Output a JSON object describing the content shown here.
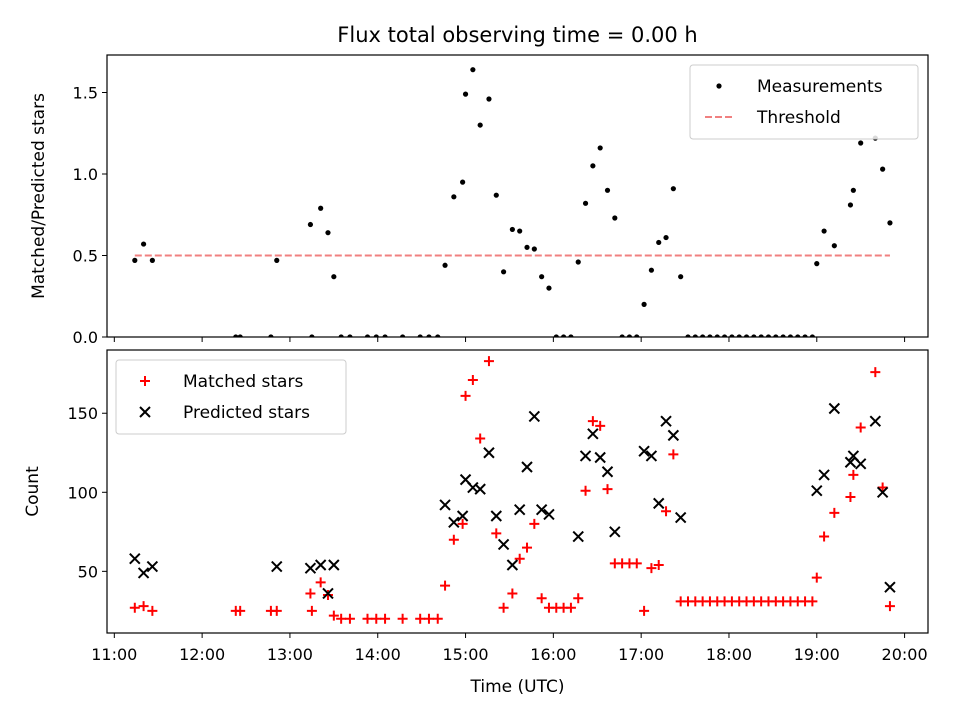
{
  "chart_data": {
    "title": "Flux total observing time = 0.00 h",
    "xlabel": "Time (UTC)",
    "x_ticks": [
      "11:00",
      "12:00",
      "13:00",
      "14:00",
      "15:00",
      "16:00",
      "17:00",
      "18:00",
      "19:00",
      "20:00"
    ],
    "xlim": [
      "10:55",
      "20:16"
    ],
    "panels": [
      {
        "type": "scatter",
        "ylabel": "Matched/Predicted stars",
        "ylim": [
          0,
          1.73
        ],
        "y_ticks": [
          "0.0",
          "0.5",
          "1.0",
          "1.5"
        ],
        "legend": "top-right",
        "series": [
          {
            "name": "Measurements",
            "marker": "dot",
            "color": "#000000",
            "points": [
              [
                "11:14",
                0.47
              ],
              [
                "11:20",
                0.57
              ],
              [
                "11:26",
                0.47
              ],
              [
                "12:23",
                0.0
              ],
              [
                "12:26",
                0.0
              ],
              [
                "12:47",
                0.0
              ],
              [
                "12:51",
                0.47
              ],
              [
                "13:14",
                0.69
              ],
              [
                "13:15",
                0.0
              ],
              [
                "13:21",
                0.79
              ],
              [
                "13:26",
                0.64
              ],
              [
                "13:30",
                0.37
              ],
              [
                "13:35",
                0.0
              ],
              [
                "13:41",
                0.0
              ],
              [
                "13:53",
                0.0
              ],
              [
                "13:59",
                0.0
              ],
              [
                "14:05",
                0.0
              ],
              [
                "14:17",
                0.0
              ],
              [
                "14:29",
                0.0
              ],
              [
                "14:35",
                0.0
              ],
              [
                "14:41",
                0.0
              ],
              [
                "14:46",
                0.44
              ],
              [
                "14:52",
                0.86
              ],
              [
                "14:58",
                0.95
              ],
              [
                "15:00",
                1.49
              ],
              [
                "15:05",
                1.64
              ],
              [
                "15:10",
                1.3
              ],
              [
                "15:16",
                1.46
              ],
              [
                "15:21",
                0.87
              ],
              [
                "15:26",
                0.4
              ],
              [
                "15:32",
                0.66
              ],
              [
                "15:37",
                0.65
              ],
              [
                "15:42",
                0.55
              ],
              [
                "15:47",
                0.54
              ],
              [
                "15:52",
                0.37
              ],
              [
                "15:57",
                0.3
              ],
              [
                "16:02",
                0.0
              ],
              [
                "16:07",
                0.0
              ],
              [
                "16:12",
                0.0
              ],
              [
                "16:17",
                0.46
              ],
              [
                "16:22",
                0.82
              ],
              [
                "16:27",
                1.05
              ],
              [
                "16:32",
                1.16
              ],
              [
                "16:37",
                0.9
              ],
              [
                "16:42",
                0.73
              ],
              [
                "16:47",
                0.0
              ],
              [
                "16:52",
                0.0
              ],
              [
                "16:57",
                0.0
              ],
              [
                "17:02",
                0.2
              ],
              [
                "17:07",
                0.41
              ],
              [
                "17:12",
                0.58
              ],
              [
                "17:17",
                0.61
              ],
              [
                "17:22",
                0.91
              ],
              [
                "17:27",
                0.37
              ],
              [
                "17:32",
                0.0
              ],
              [
                "17:37",
                0.0
              ],
              [
                "17:42",
                0.0
              ],
              [
                "17:47",
                0.0
              ],
              [
                "17:52",
                0.0
              ],
              [
                "17:57",
                0.0
              ],
              [
                "18:02",
                0.0
              ],
              [
                "18:07",
                0.0
              ],
              [
                "18:12",
                0.0
              ],
              [
                "18:17",
                0.0
              ],
              [
                "18:22",
                0.0
              ],
              [
                "18:27",
                0.0
              ],
              [
                "18:32",
                0.0
              ],
              [
                "18:37",
                0.0
              ],
              [
                "18:42",
                0.0
              ],
              [
                "18:47",
                0.0
              ],
              [
                "18:52",
                0.0
              ],
              [
                "18:57",
                0.0
              ],
              [
                "19:00",
                0.45
              ],
              [
                "19:05",
                0.65
              ],
              [
                "19:12",
                0.56
              ],
              [
                "19:23",
                0.81
              ],
              [
                "19:25",
                0.9
              ],
              [
                "19:30",
                1.19
              ],
              [
                "19:40",
                1.22
              ],
              [
                "19:45",
                1.03
              ],
              [
                "19:50",
                0.7
              ]
            ]
          },
          {
            "name": "Threshold",
            "marker": "dashed-line",
            "color": "#f08080",
            "points": [
              [
                "11:14",
                0.5
              ],
              [
                "19:50",
                0.5
              ]
            ]
          }
        ]
      },
      {
        "type": "scatter",
        "ylabel": "Count",
        "ylim": [
          11,
          190
        ],
        "y_ticks": [
          "50",
          "100",
          "150"
        ],
        "legend": "top-left",
        "series": [
          {
            "name": "Matched stars",
            "marker": "plus",
            "color": "#ff0000",
            "points": [
              [
                "11:14",
                27
              ],
              [
                "11:20",
                28
              ],
              [
                "11:26",
                25
              ],
              [
                "12:23",
                25
              ],
              [
                "12:26",
                25
              ],
              [
                "12:47",
                25
              ],
              [
                "12:51",
                25
              ],
              [
                "13:14",
                36
              ],
              [
                "13:15",
                25
              ],
              [
                "13:21",
                43
              ],
              [
                "13:26",
                35
              ],
              [
                "13:30",
                22
              ],
              [
                "13:35",
                20
              ],
              [
                "13:41",
                20
              ],
              [
                "13:53",
                20
              ],
              [
                "13:59",
                20
              ],
              [
                "14:05",
                20
              ],
              [
                "14:17",
                20
              ],
              [
                "14:29",
                20
              ],
              [
                "14:35",
                20
              ],
              [
                "14:41",
                20
              ],
              [
                "14:46",
                41
              ],
              [
                "14:52",
                70
              ],
              [
                "14:58",
                80
              ],
              [
                "15:00",
                161
              ],
              [
                "15:05",
                171
              ],
              [
                "15:10",
                134
              ],
              [
                "15:16",
                183
              ],
              [
                "15:21",
                74
              ],
              [
                "15:26",
                27
              ],
              [
                "15:32",
                36
              ],
              [
                "15:37",
                58
              ],
              [
                "15:42",
                65
              ],
              [
                "15:47",
                80
              ],
              [
                "15:52",
                33
              ],
              [
                "15:57",
                27
              ],
              [
                "16:02",
                27
              ],
              [
                "16:07",
                27
              ],
              [
                "16:12",
                27
              ],
              [
                "16:17",
                33
              ],
              [
                "16:22",
                101
              ],
              [
                "16:27",
                145
              ],
              [
                "16:32",
                142
              ],
              [
                "16:37",
                102
              ],
              [
                "16:42",
                55
              ],
              [
                "16:47",
                55
              ],
              [
                "16:52",
                55
              ],
              [
                "16:57",
                55
              ],
              [
                "17:02",
                25
              ],
              [
                "17:07",
                52
              ],
              [
                "17:12",
                54
              ],
              [
                "17:17",
                88
              ],
              [
                "17:22",
                124
              ],
              [
                "17:27",
                31
              ],
              [
                "17:32",
                31
              ],
              [
                "17:37",
                31
              ],
              [
                "17:42",
                31
              ],
              [
                "17:47",
                31
              ],
              [
                "17:52",
                31
              ],
              [
                "17:57",
                31
              ],
              [
                "18:02",
                31
              ],
              [
                "18:07",
                31
              ],
              [
                "18:12",
                31
              ],
              [
                "18:17",
                31
              ],
              [
                "18:22",
                31
              ],
              [
                "18:27",
                31
              ],
              [
                "18:32",
                31
              ],
              [
                "18:37",
                31
              ],
              [
                "18:42",
                31
              ],
              [
                "18:47",
                31
              ],
              [
                "18:52",
                31
              ],
              [
                "18:57",
                31
              ],
              [
                "19:00",
                46
              ],
              [
                "19:05",
                72
              ],
              [
                "19:12",
                87
              ],
              [
                "19:23",
                97
              ],
              [
                "19:25",
                111
              ],
              [
                "19:30",
                141
              ],
              [
                "19:40",
                176
              ],
              [
                "19:45",
                103
              ],
              [
                "19:50",
                28
              ]
            ]
          },
          {
            "name": "Predicted stars",
            "marker": "x",
            "color": "#000000",
            "points": [
              [
                "11:14",
                58
              ],
              [
                "11:20",
                49
              ],
              [
                "11:26",
                53
              ],
              [
                "12:51",
                53
              ],
              [
                "13:14",
                52
              ],
              [
                "13:21",
                54
              ],
              [
                "13:26",
                36
              ],
              [
                "13:30",
                54
              ],
              [
                "14:46",
                92
              ],
              [
                "14:52",
                81
              ],
              [
                "14:58",
                85
              ],
              [
                "15:00",
                108
              ],
              [
                "15:05",
                103
              ],
              [
                "15:10",
                102
              ],
              [
                "15:16",
                125
              ],
              [
                "15:21",
                85
              ],
              [
                "15:26",
                67
              ],
              [
                "15:32",
                54
              ],
              [
                "15:37",
                89
              ],
              [
                "15:42",
                116
              ],
              [
                "15:47",
                148
              ],
              [
                "15:52",
                89
              ],
              [
                "15:57",
                86
              ],
              [
                "16:17",
                72
              ],
              [
                "16:22",
                123
              ],
              [
                "16:27",
                137
              ],
              [
                "16:32",
                122
              ],
              [
                "16:37",
                113
              ],
              [
                "16:42",
                75
              ],
              [
                "17:02",
                126
              ],
              [
                "17:07",
                123
              ],
              [
                "17:12",
                93
              ],
              [
                "17:17",
                145
              ],
              [
                "17:22",
                136
              ],
              [
                "17:27",
                84
              ],
              [
                "19:00",
                101
              ],
              [
                "19:05",
                111
              ],
              [
                "19:12",
                153
              ],
              [
                "19:23",
                119
              ],
              [
                "19:25",
                123
              ],
              [
                "19:30",
                118
              ],
              [
                "19:40",
                145
              ],
              [
                "19:45",
                100
              ],
              [
                "19:50",
                40
              ]
            ]
          }
        ]
      }
    ]
  }
}
